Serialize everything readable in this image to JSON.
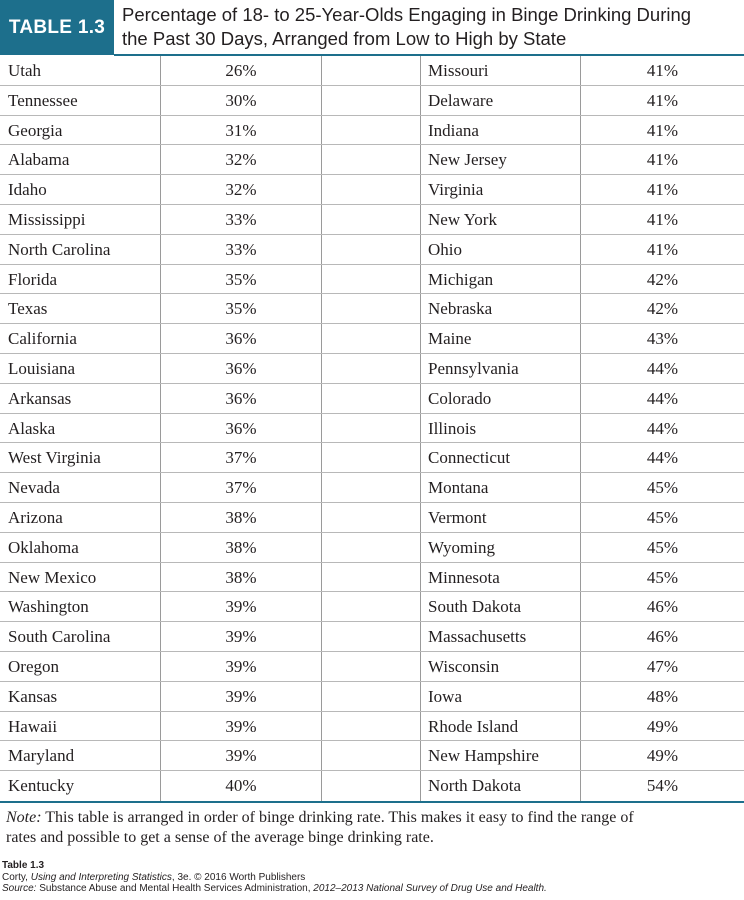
{
  "table_label": "TABLE 1.3",
  "title_line1": "Percentage of 18- to 25-Year-Olds Engaging in Binge Drinking During",
  "title_line2": "the Past 30 Days, Arranged from Low to High by State",
  "left_column": [
    {
      "state": "Utah",
      "pct": "26%"
    },
    {
      "state": "Tennessee",
      "pct": "30%"
    },
    {
      "state": "Georgia",
      "pct": "31%"
    },
    {
      "state": "Alabama",
      "pct": "32%"
    },
    {
      "state": "Idaho",
      "pct": "32%"
    },
    {
      "state": "Mississippi",
      "pct": "33%"
    },
    {
      "state": "North Carolina",
      "pct": "33%"
    },
    {
      "state": "Florida",
      "pct": "35%"
    },
    {
      "state": "Texas",
      "pct": "35%"
    },
    {
      "state": "California",
      "pct": "36%"
    },
    {
      "state": "Louisiana",
      "pct": "36%"
    },
    {
      "state": "Arkansas",
      "pct": "36%"
    },
    {
      "state": "Alaska",
      "pct": "36%"
    },
    {
      "state": "West Virginia",
      "pct": "37%"
    },
    {
      "state": "Nevada",
      "pct": "37%"
    },
    {
      "state": "Arizona",
      "pct": "38%"
    },
    {
      "state": "Oklahoma",
      "pct": "38%"
    },
    {
      "state": "New Mexico",
      "pct": "38%"
    },
    {
      "state": "Washington",
      "pct": "39%"
    },
    {
      "state": "South Carolina",
      "pct": "39%"
    },
    {
      "state": "Oregon",
      "pct": "39%"
    },
    {
      "state": "Kansas",
      "pct": "39%"
    },
    {
      "state": "Hawaii",
      "pct": "39%"
    },
    {
      "state": "Maryland",
      "pct": "39%"
    },
    {
      "state": "Kentucky",
      "pct": "40%"
    }
  ],
  "right_column": [
    {
      "state": "Missouri",
      "pct": "41%"
    },
    {
      "state": "Delaware",
      "pct": "41%"
    },
    {
      "state": "Indiana",
      "pct": "41%"
    },
    {
      "state": "New Jersey",
      "pct": "41%"
    },
    {
      "state": "Virginia",
      "pct": "41%"
    },
    {
      "state": "New York",
      "pct": "41%"
    },
    {
      "state": "Ohio",
      "pct": "41%"
    },
    {
      "state": "Michigan",
      "pct": "42%"
    },
    {
      "state": "Nebraska",
      "pct": "42%"
    },
    {
      "state": "Maine",
      "pct": "43%"
    },
    {
      "state": "Pennsylvania",
      "pct": "44%"
    },
    {
      "state": "Colorado",
      "pct": "44%"
    },
    {
      "state": "Illinois",
      "pct": "44%"
    },
    {
      "state": "Connecticut",
      "pct": "44%"
    },
    {
      "state": "Montana",
      "pct": "45%"
    },
    {
      "state": "Vermont",
      "pct": "45%"
    },
    {
      "state": "Wyoming",
      "pct": "45%"
    },
    {
      "state": "Minnesota",
      "pct": "45%"
    },
    {
      "state": "South Dakota",
      "pct": "46%"
    },
    {
      "state": "Massachusetts",
      "pct": "46%"
    },
    {
      "state": "Wisconsin",
      "pct": "47%"
    },
    {
      "state": "Iowa",
      "pct": "48%"
    },
    {
      "state": "Rhode Island",
      "pct": "49%"
    },
    {
      "state": "New Hampshire",
      "pct": "49%"
    },
    {
      "state": "North Dakota",
      "pct": "54%"
    }
  ],
  "note": {
    "label": "Note:",
    "text_line1": "This table is arranged in order of binge drinking rate. This makes it easy to find the range of",
    "text_line2": "rates and possible to get a sense of the average binge drinking rate."
  },
  "caption": {
    "label": "Table 1.3",
    "citation_author": "Corty, ",
    "citation_book": "Using and Interpreting Statistics",
    "citation_rest": ", 3e. © 2016 Worth Publishers",
    "source_label": "Source:",
    "source_text": " Substance Abuse and Mental Health Services Administration, ",
    "source_title": "2012–2013 National Survey of Drug Use and Health."
  },
  "colors": {
    "accent": "#1d6f8c",
    "text": "#231f20",
    "rule": "#b8b8b8"
  }
}
